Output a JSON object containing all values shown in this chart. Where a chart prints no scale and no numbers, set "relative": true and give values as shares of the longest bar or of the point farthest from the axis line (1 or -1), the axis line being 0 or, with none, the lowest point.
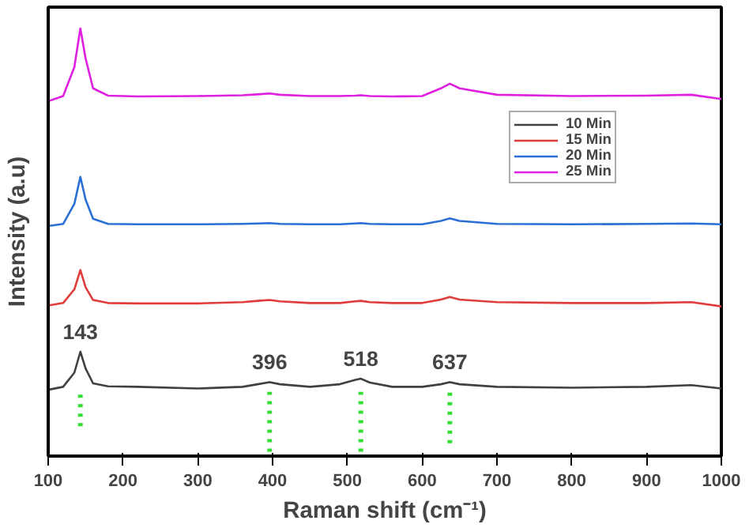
{
  "chart_data": {
    "type": "line",
    "relative": true,
    "xlabel": "Raman shift (cm⁻¹)",
    "ylabel": "Intensity (a.u)",
    "xlim": [
      100,
      1000
    ],
    "xticks": [
      100,
      200,
      300,
      400,
      500,
      600,
      700,
      800,
      900,
      1000
    ],
    "grid": false,
    "legend": "top right",
    "line_style": "solid",
    "x": [
      100,
      120,
      135,
      143,
      150,
      160,
      180,
      220,
      300,
      360,
      380,
      396,
      410,
      450,
      490,
      510,
      518,
      530,
      560,
      600,
      625,
      637,
      650,
      700,
      800,
      900,
      960,
      1000
    ],
    "series": [
      {
        "name": "10 Min",
        "color": "#404040",
        "values": [
          0.155,
          0.162,
          0.195,
          0.244,
          0.205,
          0.17,
          0.163,
          0.162,
          0.158,
          0.162,
          0.168,
          0.173,
          0.168,
          0.162,
          0.168,
          0.178,
          0.181,
          0.172,
          0.162,
          0.162,
          0.168,
          0.173,
          0.168,
          0.162,
          0.16,
          0.162,
          0.166,
          0.158
        ]
      },
      {
        "name": "15 Min",
        "color": "#e03c3c",
        "values": [
          0.352,
          0.358,
          0.39,
          0.435,
          0.395,
          0.365,
          0.358,
          0.357,
          0.357,
          0.36,
          0.363,
          0.365,
          0.362,
          0.358,
          0.358,
          0.362,
          0.363,
          0.36,
          0.358,
          0.358,
          0.366,
          0.372,
          0.366,
          0.36,
          0.358,
          0.358,
          0.36,
          0.35
        ]
      },
      {
        "name": "20 Min",
        "color": "#2a6fd6",
        "values": [
          0.538,
          0.543,
          0.59,
          0.653,
          0.6,
          0.555,
          0.543,
          0.542,
          0.542,
          0.543,
          0.544,
          0.545,
          0.543,
          0.542,
          0.542,
          0.544,
          0.545,
          0.543,
          0.542,
          0.542,
          0.55,
          0.556,
          0.55,
          0.543,
          0.542,
          0.543,
          0.544,
          0.542
        ]
      },
      {
        "name": "25 Min",
        "color": "#e020e0",
        "values": [
          0.83,
          0.842,
          0.91,
          1.0,
          0.93,
          0.86,
          0.843,
          0.841,
          0.842,
          0.844,
          0.846,
          0.848,
          0.845,
          0.842,
          0.842,
          0.843,
          0.844,
          0.842,
          0.841,
          0.842,
          0.86,
          0.871,
          0.86,
          0.845,
          0.842,
          0.843,
          0.845,
          0.835
        ]
      },
      {
        "type": "line",
        "line_style": "dotted",
        "color": "#33dd33",
        "x": [
          143,
          143
        ],
        "values": [
          0.07,
          0.15
        ]
      },
      {
        "type": "line",
        "line_style": "dotted",
        "color": "#33dd33",
        "x": [
          396,
          396
        ],
        "values": [
          0.01,
          0.15
        ]
      },
      {
        "type": "line",
        "line_style": "dotted",
        "color": "#33dd33",
        "x": [
          518,
          518
        ],
        "values": [
          0.01,
          0.15
        ]
      },
      {
        "type": "line",
        "line_style": "dotted",
        "color": "#33dd33",
        "x": [
          637,
          637
        ],
        "values": [
          0.03,
          0.15
        ]
      }
    ],
    "annotations": [
      {
        "text": "143",
        "x": 143,
        "y": 0.244
      },
      {
        "text": "396",
        "x": 396,
        "y": 0.173
      },
      {
        "text": "518",
        "x": 518,
        "y": 0.181
      },
      {
        "text": "637",
        "x": 637,
        "y": 0.173
      }
    ]
  }
}
